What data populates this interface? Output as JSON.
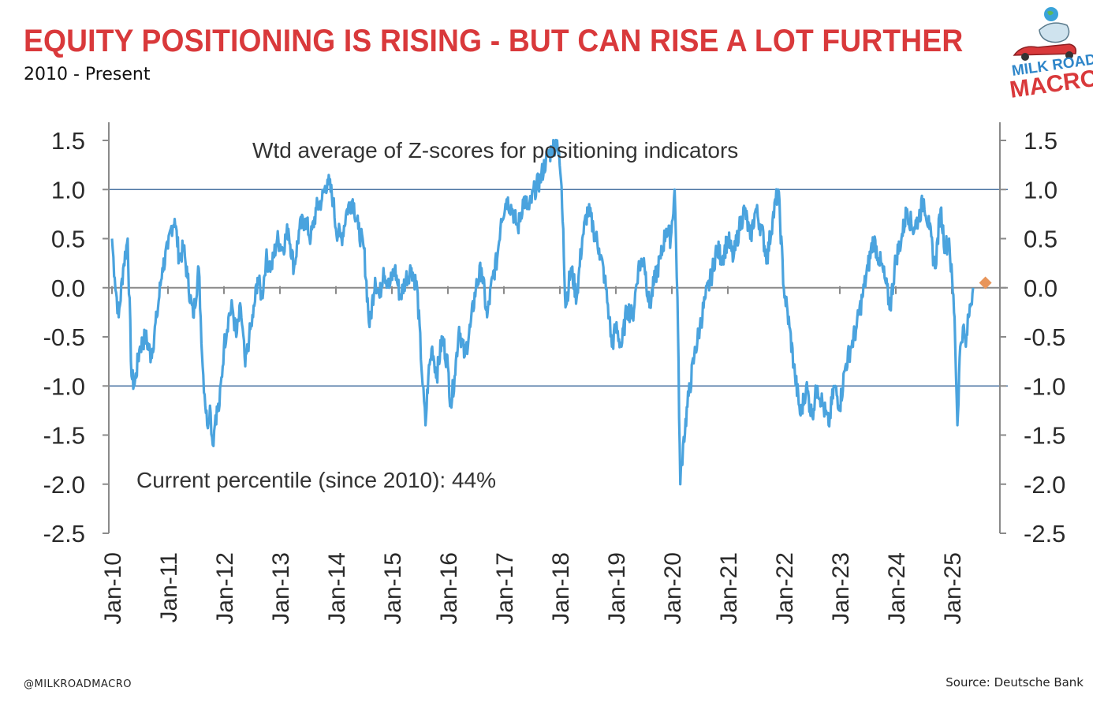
{
  "header": {
    "title": "EQUITY POSITIONING IS RISING - BUT CAN RISE A LOT FURTHER",
    "subtitle": "2010 - Present"
  },
  "logo": {
    "line1": "MILK ROAD",
    "line2": "MACRO"
  },
  "footer": {
    "handle": "@MILKROADMACRO",
    "source": "Source: Deutsche Bank"
  },
  "colors": {
    "title": "#d9393b",
    "series": "#4aa3de",
    "reference": "#4b74a3",
    "marker": "#e8955a",
    "axis": "#8a8a8a"
  },
  "chart_data": {
    "type": "line",
    "annotations": {
      "top": "Wtd average of Z-scores for positioning indicators",
      "bottom": "Current percentile (since 2010): 44%"
    },
    "ylim": [
      -2.5,
      1.5
    ],
    "yticks": [
      "1.5",
      "1.0",
      "0.5",
      "0.0",
      "-0.5",
      "-1.0",
      "-1.5",
      "-2.0",
      "-2.5"
    ],
    "yticks_values": [
      1.5,
      1.0,
      0.5,
      0.0,
      -0.5,
      -1.0,
      -1.5,
      -2.0,
      -2.5
    ],
    "reference_lines": [
      1.0,
      0.0,
      -1.0
    ],
    "xlim": [
      2010.0,
      2026.0
    ],
    "xticks": [
      "Jan-10",
      "Jan-11",
      "Jan-12",
      "Jan-13",
      "Jan-14",
      "Jan-15",
      "Jan-16",
      "Jan-17",
      "Jan-18",
      "Jan-19",
      "Jan-20",
      "Jan-21",
      "Jan-22",
      "Jan-23",
      "Jan-24",
      "Jan-25"
    ],
    "xticks_values": [
      2010,
      2011,
      2012,
      2013,
      2014,
      2015,
      2016,
      2017,
      2018,
      2019,
      2020,
      2021,
      2022,
      2023,
      2024,
      2025
    ],
    "grid": false,
    "dual_y_axis": true,
    "series": [
      {
        "x": [
          2010.0,
          2010.05,
          2010.12,
          2010.2,
          2010.28,
          2010.35,
          2010.4,
          2010.5,
          2010.6,
          2010.7,
          2010.8,
          2010.9,
          2011.0,
          2011.05,
          2011.12,
          2011.2,
          2011.28,
          2011.35,
          2011.45,
          2011.55,
          2011.62,
          2011.7,
          2011.75,
          2011.8,
          2011.85,
          2011.92,
          2012.0,
          2012.08,
          2012.15,
          2012.22,
          2012.3,
          2012.38,
          2012.45,
          2012.52,
          2012.6,
          2012.68,
          2012.75,
          2012.85,
          2012.95,
          2013.05,
          2013.15,
          2013.25,
          2013.35,
          2013.45,
          2013.55,
          2013.65,
          2013.75,
          2013.85,
          2013.95,
          2014.0,
          2014.1,
          2014.2,
          2014.3,
          2014.4,
          2014.5,
          2014.6,
          2014.7,
          2014.78,
          2014.85,
          2014.95,
          2015.05,
          2015.15,
          2015.25,
          2015.35,
          2015.45,
          2015.55,
          2015.6,
          2015.65,
          2015.72,
          2015.8,
          2015.9,
          2016.0,
          2016.05,
          2016.12,
          2016.2,
          2016.3,
          2016.4,
          2016.5,
          2016.6,
          2016.7,
          2016.8,
          2016.88,
          2016.95,
          2017.05,
          2017.15,
          2017.25,
          2017.35,
          2017.45,
          2017.55,
          2017.65,
          2017.75,
          2017.85,
          2017.95,
          2018.02,
          2018.06,
          2018.1,
          2018.2,
          2018.3,
          2018.4,
          2018.5,
          2018.6,
          2018.7,
          2018.8,
          2018.88,
          2018.93,
          2019.0,
          2019.1,
          2019.2,
          2019.3,
          2019.4,
          2019.5,
          2019.6,
          2019.7,
          2019.8,
          2019.9,
          2019.98,
          2020.05,
          2020.1,
          2020.15,
          2020.2,
          2020.3,
          2020.4,
          2020.5,
          2020.6,
          2020.7,
          2020.8,
          2020.9,
          2021.0,
          2021.1,
          2021.2,
          2021.3,
          2021.4,
          2021.5,
          2021.6,
          2021.7,
          2021.8,
          2021.9,
          2022.0,
          2022.1,
          2022.2,
          2022.3,
          2022.4,
          2022.5,
          2022.6,
          2022.7,
          2022.8,
          2022.9,
          2023.0,
          2023.1,
          2023.2,
          2023.3,
          2023.4,
          2023.5,
          2023.6,
          2023.7,
          2023.8,
          2023.9,
          2024.0,
          2024.1,
          2024.2,
          2024.3,
          2024.4,
          2024.5,
          2024.6,
          2024.7,
          2024.8,
          2024.88,
          2024.95,
          2025.05,
          2025.1,
          2025.15,
          2025.2,
          2025.25,
          2025.3,
          2025.38
        ],
        "values": [
          0.5,
          0.1,
          -0.3,
          0.2,
          0.5,
          -0.9,
          -1.0,
          -0.6,
          -0.5,
          -0.7,
          -0.3,
          0.2,
          0.4,
          0.6,
          0.7,
          0.3,
          0.4,
          0.1,
          -0.3,
          0.2,
          -0.8,
          -1.4,
          -1.2,
          -1.6,
          -1.3,
          -1.2,
          -0.6,
          -0.3,
          -0.2,
          -0.5,
          -0.2,
          -0.8,
          -0.5,
          -0.3,
          0.1,
          -0.1,
          0.3,
          0.2,
          0.5,
          0.4,
          0.6,
          0.2,
          0.6,
          0.7,
          0.5,
          0.8,
          0.9,
          1.1,
          0.9,
          0.6,
          0.5,
          0.8,
          0.9,
          0.6,
          0.4,
          -0.4,
          0.1,
          -0.1,
          0.2,
          0.0,
          0.2,
          -0.1,
          0.1,
          0.2,
          0.0,
          -1.0,
          -1.4,
          -0.9,
          -0.6,
          -0.9,
          -0.5,
          -0.8,
          -1.2,
          -0.9,
          -0.4,
          -0.7,
          -0.4,
          0.0,
          0.2,
          -0.3,
          0.1,
          0.3,
          0.7,
          0.9,
          0.8,
          0.6,
          0.9,
          0.8,
          1.0,
          1.1,
          1.3,
          1.4,
          1.5,
          1.1,
          0.6,
          -0.2,
          0.2,
          -0.1,
          0.5,
          0.8,
          0.6,
          0.4,
          0.1,
          -0.3,
          -0.6,
          -0.4,
          -0.6,
          -0.2,
          -0.3,
          0.2,
          0.3,
          -0.2,
          0.1,
          0.3,
          0.6,
          0.5,
          1.0,
          -0.1,
          -2.0,
          -1.6,
          -1.1,
          -0.7,
          -0.4,
          -0.1,
          0.1,
          0.4,
          0.3,
          0.5,
          0.3,
          0.6,
          0.8,
          0.5,
          0.8,
          0.6,
          0.3,
          0.7,
          1.0,
          0.0,
          -0.4,
          -0.9,
          -1.3,
          -1.0,
          -1.3,
          -1.0,
          -1.2,
          -1.4,
          -1.0,
          -1.2,
          -0.8,
          -0.6,
          -0.4,
          -0.1,
          0.2,
          0.5,
          0.3,
          0.1,
          -0.2,
          0.3,
          0.5,
          0.8,
          0.6,
          0.7,
          0.9,
          0.6,
          0.2,
          0.8,
          0.4,
          0.5,
          -0.3,
          -1.4,
          -0.6,
          -0.4,
          -0.6,
          -0.3,
          0.0
        ],
        "marker": {
          "x": 2025.6,
          "y": 0.05
        }
      }
    ]
  }
}
